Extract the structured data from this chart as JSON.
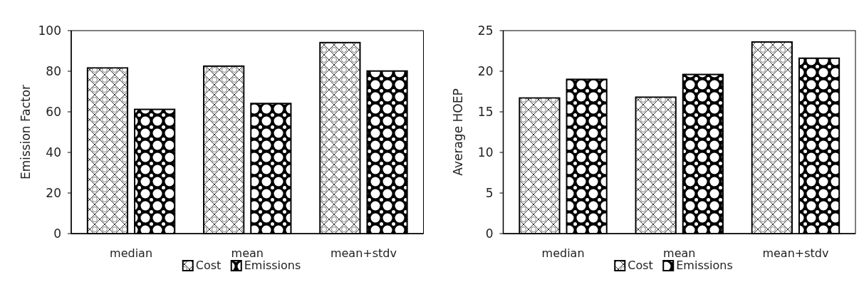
{
  "chart_data": [
    {
      "type": "bar",
      "ylabel": "Emission Factor",
      "categories": [
        "median",
        "mean",
        "mean+stdv"
      ],
      "series": [
        {
          "name": "Cost",
          "color": "#ffffff",
          "values": [
            81.6,
            82.5,
            94.1
          ]
        },
        {
          "name": "Emissions",
          "color": "#000000",
          "values": [
            61.2,
            64.1,
            80.1
          ]
        }
      ],
      "ylim": [
        0,
        100
      ],
      "yticks": [
        0,
        20,
        40,
        60,
        80,
        100
      ],
      "grid": false,
      "legend": "bottom"
    },
    {
      "type": "bar",
      "ylabel": "Average HOEP",
      "categories": [
        "median",
        "mean",
        "mean+stdv"
      ],
      "series": [
        {
          "name": "Cost",
          "color": "#ffffff",
          "values": [
            16.7,
            16.8,
            23.6
          ]
        },
        {
          "name": "Emissions",
          "color": "#000000",
          "values": [
            19.0,
            19.6,
            21.6
          ]
        }
      ],
      "ylim": [
        0,
        25
      ],
      "yticks": [
        0,
        5,
        10,
        15,
        20,
        25
      ],
      "grid": false,
      "legend": "bottom"
    }
  ]
}
